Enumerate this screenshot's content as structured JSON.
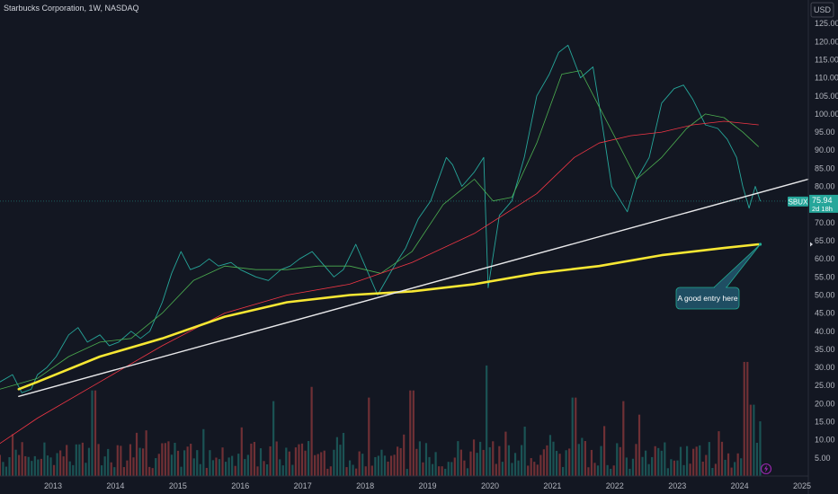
{
  "header": {
    "title": "Starbucks Corporation, 1W, NASDAQ",
    "currency": "USD"
  },
  "chart_data": {
    "type": "line",
    "title": "Starbucks Corporation, 1W, NASDAQ",
    "symbol": "SBUX",
    "last_price": "75.94",
    "countdown": "2d 18h",
    "currency": "USD",
    "timeframe": "1W",
    "exchange": "NASDAQ",
    "ylim": [
      0,
      130
    ],
    "xlim": [
      2012.4,
      2025.35
    ],
    "grid": false,
    "y_ticks": [
      "125.00",
      "120.00",
      "115.00",
      "110.00",
      "105.00",
      "100.00",
      "95.00",
      "90.00",
      "85.00",
      "80.00",
      "70.00",
      "65.00",
      "60.00",
      "55.00",
      "50.00",
      "45.00",
      "40.00",
      "35.00",
      "30.00",
      "25.00",
      "20.00",
      "15.00",
      "10.00",
      "5.00"
    ],
    "x_ticks": [
      "2013",
      "2014",
      "2015",
      "2016",
      "2017",
      "2018",
      "2019",
      "2020",
      "2021",
      "2022",
      "2023",
      "2024",
      "2025"
    ],
    "series": [
      {
        "key": "price",
        "color": "#26a69a",
        "width": 0.9,
        "x": [
          2012.4,
          2012.6,
          2012.75,
          2012.9,
          2013.0,
          2013.15,
          2013.3,
          2013.5,
          2013.65,
          2013.8,
          2014.0,
          2014.15,
          2014.3,
          2014.5,
          2014.65,
          2014.8,
          2015.0,
          2015.15,
          2015.3,
          2015.45,
          2015.6,
          2015.75,
          2015.9,
          2016.1,
          2016.25,
          2016.5,
          2016.7,
          2016.9,
          2017.05,
          2017.2,
          2017.4,
          2017.6,
          2017.75,
          2017.9,
          2018.1,
          2018.3,
          2018.45,
          2018.55,
          2018.75,
          2018.9,
          2019.1,
          2019.3,
          2019.55,
          2019.65,
          2019.8,
          2020.0,
          2020.15,
          2020.22,
          2020.4,
          2020.6,
          2020.8,
          2021.0,
          2021.2,
          2021.35,
          2021.5,
          2021.7,
          2021.9,
          2022.05,
          2022.2,
          2022.45,
          2022.6,
          2022.8,
          2023.0,
          2023.2,
          2023.35,
          2023.5,
          2023.7,
          2023.9,
          2024.05,
          2024.2,
          2024.3,
          2024.4,
          2024.5,
          2024.58
        ],
        "y": [
          26,
          28,
          23,
          24,
          28,
          30,
          33,
          39,
          41,
          37,
          39,
          36,
          37,
          40,
          38,
          40,
          48,
          56,
          62,
          57,
          58,
          60,
          58,
          59,
          57,
          55,
          54,
          57,
          58,
          60,
          62,
          58,
          55,
          57,
          64,
          56,
          50,
          53,
          59,
          63,
          71,
          76,
          88,
          86,
          80,
          84,
          88,
          52,
          72,
          76,
          88,
          105,
          111,
          117,
          119,
          110,
          113,
          97,
          80,
          73,
          82,
          88,
          103,
          107,
          108,
          104,
          97,
          96,
          93,
          88,
          80,
          74,
          80,
          76
        ]
      },
      {
        "key": "sma50",
        "color": "#4caf50",
        "width": 0.8,
        "x": [
          2012.4,
          2013.0,
          2013.5,
          2014.0,
          2014.5,
          2015.0,
          2015.5,
          2016.0,
          2016.5,
          2017.0,
          2017.5,
          2018.0,
          2018.5,
          2019.0,
          2019.5,
          2020.0,
          2020.3,
          2020.6,
          2021.0,
          2021.4,
          2021.7,
          2022.0,
          2022.3,
          2022.6,
          2023.0,
          2023.4,
          2023.7,
          2024.0,
          2024.3,
          2024.55
        ],
        "y": [
          24,
          27,
          33,
          37,
          38,
          45,
          54,
          58,
          57,
          57,
          58,
          58,
          56,
          62,
          75,
          82,
          76,
          77,
          92,
          111,
          112,
          102,
          92,
          82,
          88,
          96,
          100,
          99,
          95,
          91
        ]
      },
      {
        "key": "sma200",
        "color": "#f23645",
        "width": 0.8,
        "x": [
          2012.4,
          2013.0,
          2014.0,
          2015.0,
          2016.0,
          2017.0,
          2018.0,
          2019.0,
          2020.0,
          2021.0,
          2021.6,
          2022.0,
          2022.5,
          2023.0,
          2023.5,
          2024.0,
          2024.55
        ],
        "y": [
          9,
          16,
          26,
          36,
          45,
          50,
          53,
          59,
          67,
          78,
          88,
          92,
          94,
          95,
          97,
          98,
          97
        ]
      },
      {
        "key": "ema_yellow",
        "color": "#f7e733",
        "width": 2.6,
        "x": [
          2012.7,
          2013.0,
          2014.0,
          2015.0,
          2016.0,
          2017.0,
          2018.0,
          2019.0,
          2020.0,
          2021.0,
          2022.0,
          2023.0,
          2024.0,
          2024.55
        ],
        "y": [
          24,
          26,
          33,
          38,
          44,
          48,
          50,
          51,
          53,
          56,
          58,
          61,
          63,
          64
        ]
      },
      {
        "key": "trendline",
        "color": "#e8e8ea",
        "width": 1.4,
        "x": [
          2012.7,
          2025.35
        ],
        "y": [
          22,
          82
        ]
      }
    ],
    "volume": {
      "x_start": 2012.4,
      "x_end": 2024.58,
      "count": 240,
      "max_value": 34,
      "spikes": [
        {
          "x": 2013.9,
          "value": 24
        },
        {
          "x": 2016.8,
          "value": 21
        },
        {
          "x": 2017.4,
          "value": 25
        },
        {
          "x": 2018.3,
          "value": 22
        },
        {
          "x": 2019.0,
          "value": 24
        },
        {
          "x": 2020.2,
          "value": 31
        },
        {
          "x": 2021.6,
          "value": 22
        },
        {
          "x": 2022.4,
          "value": 21
        },
        {
          "x": 2024.35,
          "value": 32
        },
        {
          "x": 2024.45,
          "value": 20
        }
      ]
    },
    "annotation": {
      "text": "A good entry here",
      "bg_color": "#1f4e63",
      "border_color": "#22ab94",
      "target": {
        "x": 2024.58,
        "y": 64
      }
    }
  }
}
